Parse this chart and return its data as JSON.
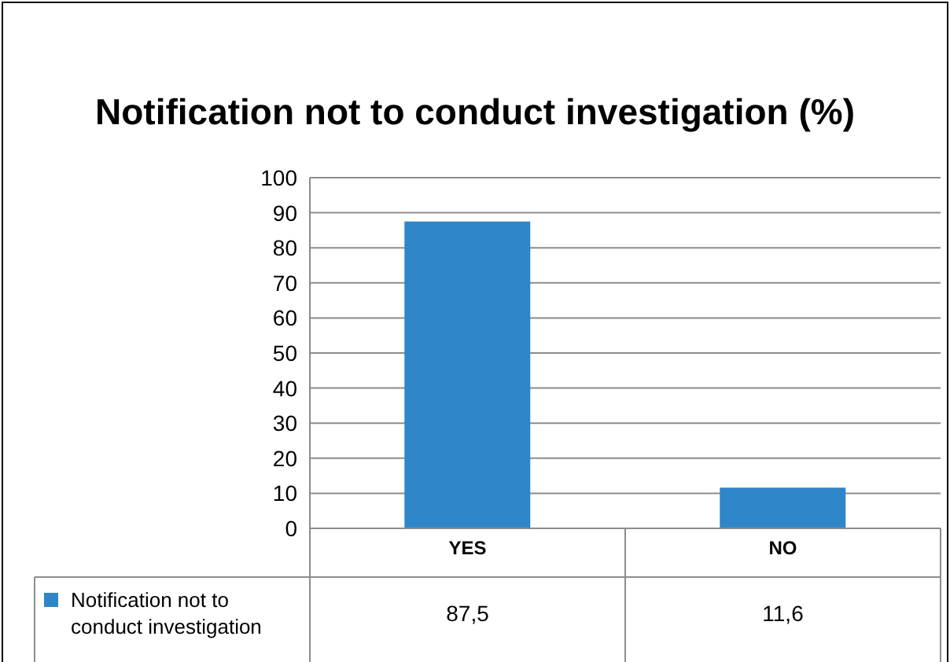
{
  "chart_data": {
    "type": "bar",
    "title": "Notification not to conduct investigation (%)",
    "categories": [
      "YES",
      "NO"
    ],
    "series": [
      {
        "name": "Notification not to conduct investigation",
        "color": "#2e86c8",
        "values": [
          87.5,
          11.6
        ],
        "value_labels": [
          "87,5",
          "11,6"
        ]
      }
    ],
    "ylim": [
      0,
      100
    ],
    "yticks": [
      0,
      10,
      20,
      30,
      40,
      50,
      60,
      70,
      80,
      90,
      100
    ],
    "grid": "y",
    "legend": "bottom left"
  }
}
